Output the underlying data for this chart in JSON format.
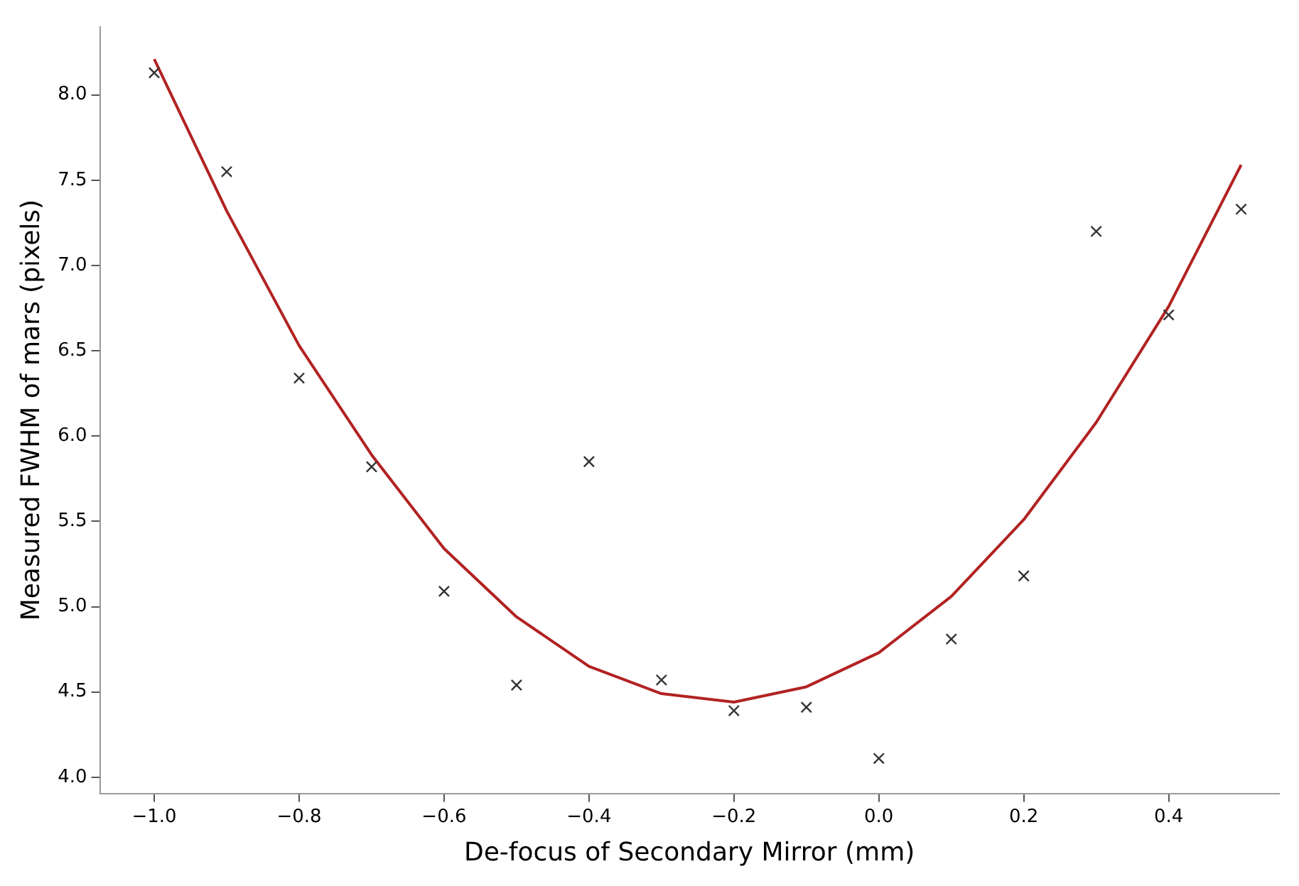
{
  "chart_data": {
    "type": "scatter",
    "xlabel": "De-focus of Secondary Mirror (mm)",
    "ylabel": "Measured FWHM of mars (pixels)",
    "x": [
      -1.0,
      -0.9,
      -0.8,
      -0.7,
      -0.6,
      -0.5,
      -0.4,
      -0.3,
      -0.2,
      -0.1,
      0.0,
      0.1,
      0.2,
      0.3,
      0.4,
      0.5
    ],
    "series": [
      {
        "type": "scatter",
        "color": "#333333",
        "marker": "cross",
        "values": [
          8.13,
          7.55,
          6.34,
          5.82,
          5.09,
          4.54,
          5.85,
          4.57,
          4.39,
          4.41,
          4.11,
          4.81,
          5.18,
          7.2,
          6.71,
          7.33
        ]
      },
      {
        "type": "line",
        "color": "#b22222",
        "marker": "none",
        "line_style": "solid",
        "values": [
          8.21,
          7.32,
          6.53,
          5.89,
          5.34,
          4.94,
          4.65,
          4.49,
          4.44,
          4.53,
          4.73,
          5.06,
          5.51,
          6.08,
          6.76,
          7.59
        ]
      }
    ],
    "xlim": [
      -1.075,
      0.552
    ],
    "ylim": [
      3.905,
      8.4
    ],
    "xticks": [
      {
        "value": -1.0,
        "label": "−1.0"
      },
      {
        "value": -0.8,
        "label": "−0.8"
      },
      {
        "value": -0.6,
        "label": "−0.6"
      },
      {
        "value": -0.4,
        "label": "−0.4"
      },
      {
        "value": -0.2,
        "label": "−0.2"
      },
      {
        "value": 0.0,
        "label": "0.0"
      },
      {
        "value": 0.2,
        "label": "0.2"
      },
      {
        "value": 0.4,
        "label": "0.4"
      }
    ],
    "yticks": [
      {
        "value": 4.0,
        "label": "4.0"
      },
      {
        "value": 4.5,
        "label": "4.5"
      },
      {
        "value": 5.0,
        "label": "5.0"
      },
      {
        "value": 5.5,
        "label": "5.5"
      },
      {
        "value": 6.0,
        "label": "6.0"
      },
      {
        "value": 6.5,
        "label": "6.5"
      },
      {
        "value": 7.0,
        "label": "7.0"
      },
      {
        "value": 7.5,
        "label": "7.5"
      },
      {
        "value": 8.0,
        "label": "8.0"
      }
    ],
    "grid": false,
    "legend": false
  }
}
